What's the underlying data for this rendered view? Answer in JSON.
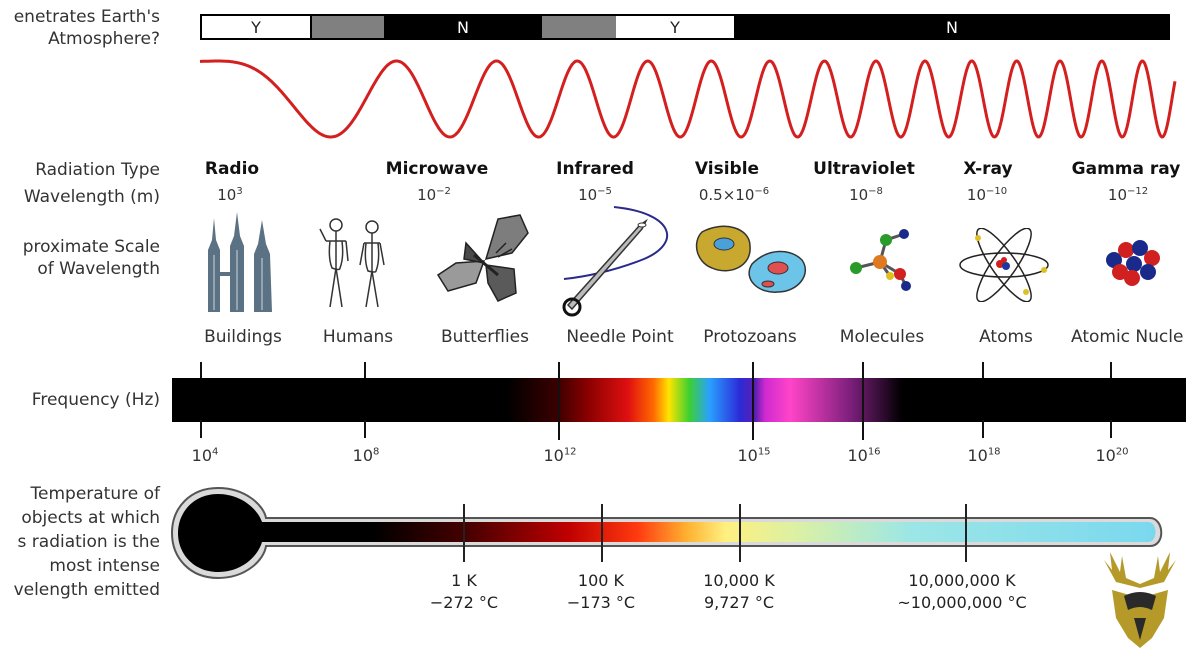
{
  "rows": {
    "atmosphere_1": "enetrates Earth's",
    "atmosphere_2": "Atmosphere?",
    "radiation_type": "Radiation Type",
    "wavelength": "Wavelength (m)",
    "scale_1": "proximate Scale",
    "scale_2": "of Wavelength",
    "frequency": "Frequency (Hz)",
    "temp_1": "Temperature of",
    "temp_2": "objects at which",
    "temp_3": "s radiation is the",
    "temp_4": "most intense",
    "temp_5": "velength emitted"
  },
  "atmosphere": [
    {
      "label": "Y",
      "style": "white"
    },
    {
      "label": "",
      "style": "gray"
    },
    {
      "label": "N",
      "style": "black"
    },
    {
      "label": "",
      "style": "gray"
    },
    {
      "label": "Y",
      "style": "white"
    },
    {
      "label": "N",
      "style": "black"
    }
  ],
  "types": [
    {
      "name": "Radio",
      "base": "10",
      "exp": "3",
      "scale": "Buildings",
      "icon": "buildings-icon"
    },
    {
      "name": "Microwave",
      "base": "10",
      "exp": "−2",
      "scale": "Humans",
      "icon": "humans-icon"
    },
    {
      "name": "Infrared",
      "base": "10",
      "exp": "−5",
      "scale": "Butterflies",
      "icon": "butterfly-icon"
    },
    {
      "name": "Visible",
      "base": "0.5×10",
      "exp": "−6",
      "scale": "Needle Point",
      "icon": "needle-icon"
    },
    {
      "name": "Ultraviolet",
      "base": "10",
      "exp": "−8",
      "scale": "Protozoans",
      "icon": "protozoa-icon"
    },
    {
      "name": "X-ray",
      "base": "10",
      "exp": "−10",
      "scale": "Molecules",
      "icon": "molecule-icon"
    },
    {
      "name": "Gamma ray",
      "base": "10",
      "exp": "−12",
      "scale": "Atoms",
      "icon": "atom-icon"
    }
  ],
  "extra_scale": {
    "label": "Atomic Nucle",
    "icon": "nucleus-icon"
  },
  "frequencies": [
    {
      "base": "10",
      "exp": "4"
    },
    {
      "base": "10",
      "exp": "8"
    },
    {
      "base": "10",
      "exp": "12"
    },
    {
      "base": "10",
      "exp": "15"
    },
    {
      "base": "10",
      "exp": "16"
    },
    {
      "base": "10",
      "exp": "18"
    },
    {
      "base": "10",
      "exp": "20"
    }
  ],
  "temperatures": [
    {
      "k": "1 K",
      "c": "−272 °C"
    },
    {
      "k": "100 K",
      "c": "−173 °C"
    },
    {
      "k": "10,000 K",
      "c": "9,727 °C"
    },
    {
      "k": "10,000,000 K",
      "c": "~10,000,000 °C"
    }
  ],
  "colors": {
    "wave": "#d41f1f",
    "logo_gold": "#b59a2a",
    "logo_dark": "#2a2a2a"
  },
  "logo": {
    "icon": "deer-crest-icon"
  }
}
